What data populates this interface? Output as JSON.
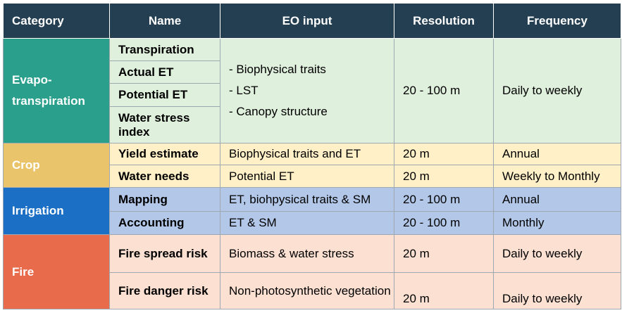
{
  "headers": [
    "Category",
    "Name",
    "EO input",
    "Resolution",
    "Frequency"
  ],
  "evapo": {
    "category": "Evapo-\ntranspiration",
    "names": [
      "Transpiration",
      "Actual ET",
      "Potential ET",
      "Water stress index"
    ],
    "eo_input": [
      "- Biophysical traits",
      "- LST",
      "- Canopy structure"
    ],
    "resolution": "20 - 100 m",
    "frequency": "Daily to weekly"
  },
  "crop": {
    "category": "Crop",
    "rows": [
      {
        "name": "Yield estimate",
        "eo": "Biophysical traits and ET",
        "res": "20 m",
        "freq": "Annual"
      },
      {
        "name": "Water needs",
        "eo": "Potential ET",
        "res": "20 m",
        "freq": "Weekly to Monthly"
      }
    ]
  },
  "irrigation": {
    "category": "Irrigation",
    "rows": [
      {
        "name": "Mapping",
        "eo": "ET, biohpysical traits & SM",
        "res": "20 - 100 m",
        "freq": "Annual"
      },
      {
        "name": "Accounting",
        "eo": "ET & SM",
        "res": "20 - 100 m",
        "freq": "Monthly"
      }
    ]
  },
  "fire": {
    "category": "Fire",
    "rows": [
      {
        "name": "Fire spread risk",
        "eo": "Biomass & water stress",
        "res": "20 m",
        "freq": "Daily to weekly"
      },
      {
        "name": "Fire danger risk",
        "eo": "Non-photosynthetic vegetation",
        "res": "20 m",
        "freq": "Daily to weekly"
      }
    ]
  },
  "colors": {
    "header_bg": "#243f52",
    "evapo": "#2aa08c",
    "crop": "#e9c46a",
    "irrigation": "#1b70c6",
    "fire": "#e86b4b"
  }
}
